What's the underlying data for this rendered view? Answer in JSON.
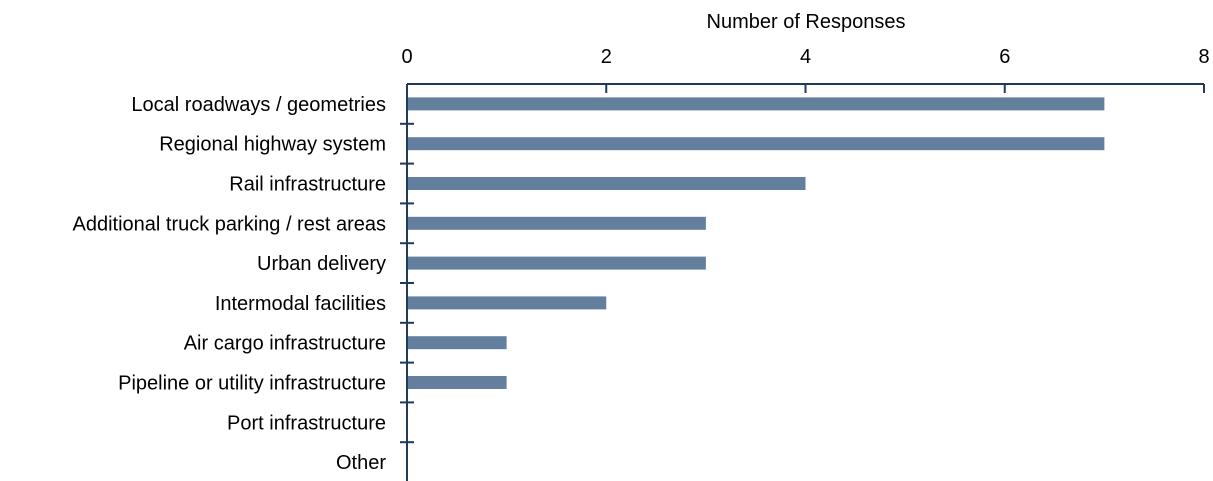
{
  "chart_data": {
    "type": "bar",
    "orientation": "horizontal",
    "xlabel": "Number of Responses",
    "xlabel_position": "top",
    "xlim": [
      0,
      8
    ],
    "xticks": [
      0,
      2,
      4,
      6,
      8
    ],
    "grid": false,
    "bar_color": "#647f9d",
    "axis_color": "#1f3a5a",
    "categories": [
      "Local roadways / geometries",
      "Regional highway system",
      "Rail infrastructure",
      "Additional truck parking / rest areas",
      "Urban delivery",
      "Intermodal facilities",
      "Air cargo infrastructure",
      "Pipeline or utility infrastructure",
      "Port infrastructure",
      "Other"
    ],
    "values": [
      7,
      7,
      4,
      3,
      3,
      2,
      1,
      1,
      0,
      0
    ]
  }
}
